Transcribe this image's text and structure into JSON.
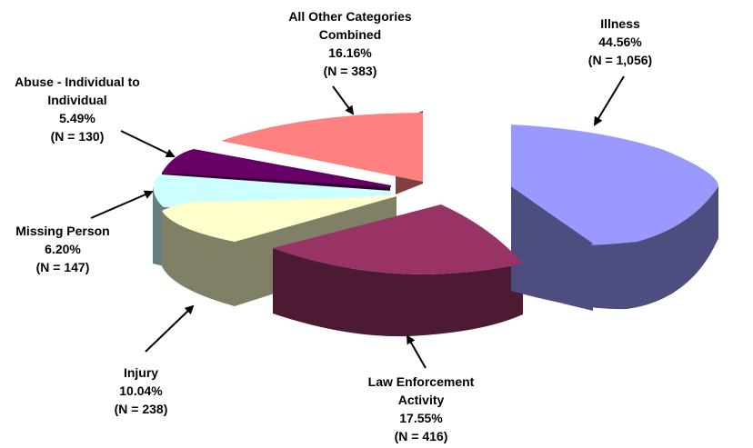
{
  "chart_data": {
    "type": "pie",
    "title": "",
    "slices": [
      {
        "label": "Illness",
        "percent": "44.56%",
        "n": "(N = 1,056)",
        "value": 1056,
        "color": "#9999ff",
        "side_color": "#4d4d80"
      },
      {
        "label": "Law Enforcement Activity",
        "label_lines": [
          "Law Enforcement",
          "Activity"
        ],
        "percent": "17.55%",
        "n": "(N = 416)",
        "value": 416,
        "color": "#993366",
        "side_color": "#4d1a33"
      },
      {
        "label": "Injury",
        "percent": "10.04%",
        "n": "(N = 238)",
        "value": 238,
        "color": "#ffffcc",
        "side_color": "#808066"
      },
      {
        "label": "Missing Person",
        "percent": "6.20%",
        "n": "(N = 147)",
        "value": 147,
        "color": "#ccffff",
        "side_color": "#668080"
      },
      {
        "label": "Abuse - Individual to Individual",
        "label_lines": [
          "Abuse - Individual to",
          "Individual"
        ],
        "percent": "5.49%",
        "n": "(N = 130)",
        "value": 130,
        "color": "#660066",
        "side_color": "#330033"
      },
      {
        "label": "All Other Categories Combined",
        "label_lines": [
          "All Other Categories",
          "Combined"
        ],
        "percent": "16.16%",
        "n": "(N = 383)",
        "value": 383,
        "color": "#ff8080",
        "side_color": "#804040"
      }
    ],
    "style": "3d-exploded"
  }
}
